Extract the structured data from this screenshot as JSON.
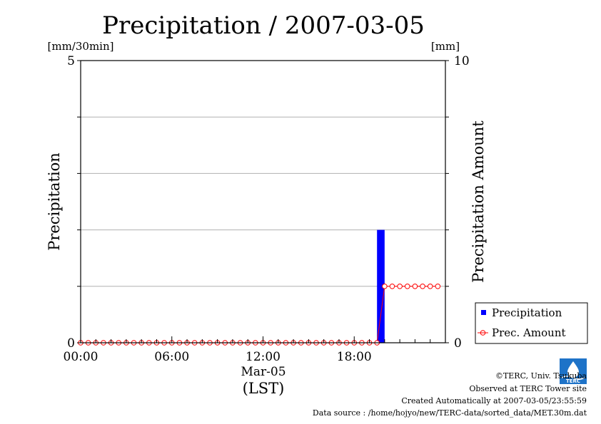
{
  "chart_data": {
    "type": "bar",
    "title": "Precipitation / 2007-03-05",
    "left_unit": "[mm/30min]",
    "right_unit": "[mm]",
    "ylabel": "Precipitation",
    "ylabel_right": "Precipitation Amount",
    "ylim": [
      0,
      5
    ],
    "ylim_right": [
      0,
      10
    ],
    "y_ticks": [
      "0",
      "5"
    ],
    "y_ticks_right": [
      "0",
      "10"
    ],
    "xlim_hours": [
      0,
      24
    ],
    "x_ticks": [
      {
        "hour": 0,
        "label": "00:00"
      },
      {
        "hour": 6,
        "label": "06:00"
      },
      {
        "hour": 12,
        "label": "12:00"
      },
      {
        "hour": 18,
        "label": "18:00"
      }
    ],
    "x_sublabel": "Mar-05",
    "xlabel": "(LST)",
    "grid": "horizontal",
    "legend_position": "right",
    "series": [
      {
        "name": "Precipitation",
        "type": "bar",
        "axis": "left",
        "color": "#0000ff",
        "bars": [
          {
            "start_hour": 19.5,
            "end_hour": 20.0,
            "value": 2.0
          }
        ]
      },
      {
        "name": "Prec. Amount",
        "type": "line",
        "axis": "right",
        "color": "#ff0000",
        "marker": "open-circle",
        "values": [
          0,
          0,
          0,
          0,
          0,
          0,
          0,
          0,
          0,
          0,
          0,
          0,
          0,
          0,
          0,
          0,
          0,
          0,
          0,
          0,
          0,
          0,
          0,
          0,
          0,
          0,
          0,
          0,
          0,
          0,
          0,
          0,
          0,
          0,
          0,
          0,
          0,
          0,
          0,
          0,
          2,
          2,
          2,
          2,
          2,
          2,
          2,
          2
        ]
      }
    ]
  },
  "footer": {
    "copyright": "©TERC, Univ. Tsukuba",
    "observed": "Observed at TERC Tower site",
    "created": "Created Automatically at 2007-03-05/23:55:59",
    "source": "Data source : /home/hojyo/new/TERC-data/sorted_data/MET.30m.dat",
    "logo_text": "TERC"
  }
}
